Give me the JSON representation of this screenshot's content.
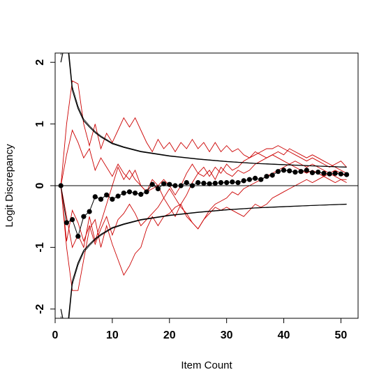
{
  "chart_data": {
    "type": "line",
    "title": "",
    "xlabel": "Item Count",
    "ylabel": "Logit Discrepancy",
    "xlim": [
      0,
      53
    ],
    "ylim": [
      -2.15,
      2.15
    ],
    "xticks": [
      0,
      10,
      20,
      30,
      40,
      50
    ],
    "yticks": [
      -2,
      -1,
      0,
      1,
      2
    ],
    "grid": false,
    "legend": "none",
    "colors": {
      "bands": "#000000",
      "paths": "#cc0000",
      "mean": "#000000",
      "reference": "#000000"
    },
    "reference_line": {
      "y": 0
    },
    "control_bands": [
      {
        "name": "upper",
        "x": [
          1,
          2,
          3,
          4,
          5,
          6,
          7,
          8,
          10,
          12,
          15,
          20,
          25,
          30,
          35,
          40,
          45,
          51
        ],
        "y": [
          2.0,
          2.45,
          1.55,
          1.25,
          1.05,
          0.95,
          0.86,
          0.79,
          0.68,
          0.62,
          0.55,
          0.48,
          0.43,
          0.39,
          0.36,
          0.34,
          0.32,
          0.3
        ]
      },
      {
        "name": "lower",
        "x": [
          1,
          2,
          3,
          4,
          5,
          6,
          7,
          8,
          10,
          12,
          15,
          20,
          25,
          30,
          35,
          40,
          45,
          51
        ],
        "y": [
          -2.0,
          -2.45,
          -1.55,
          -1.25,
          -1.05,
          -0.95,
          -0.86,
          -0.79,
          -0.68,
          -0.62,
          -0.55,
          -0.48,
          -0.43,
          -0.39,
          -0.36,
          -0.34,
          -0.32,
          -0.3
        ]
      }
    ],
    "series": [
      {
        "x": [
          1,
          2,
          3,
          4,
          5,
          6,
          7,
          8,
          9,
          10,
          11,
          12,
          13,
          14,
          15,
          16,
          17,
          18,
          19,
          20,
          21,
          22,
          23,
          24,
          25,
          26,
          27,
          28,
          29,
          30,
          31,
          32,
          33,
          34,
          35,
          36,
          37,
          38,
          39,
          40,
          41,
          42,
          43,
          44,
          45,
          46,
          47,
          48,
          49,
          50,
          51
        ],
        "y": [
          0,
          -0.6,
          -0.55,
          -0.82,
          -0.5,
          -0.42,
          -0.18,
          -0.22,
          -0.15,
          -0.22,
          -0.17,
          -0.12,
          -0.1,
          -0.12,
          -0.14,
          -0.1,
          0.02,
          -0.05,
          0.03,
          0.02,
          0.0,
          0.0,
          0.05,
          0.0,
          0.05,
          0.04,
          0.03,
          0.04,
          0.05,
          0.05,
          0.06,
          0.05,
          0.08,
          0.1,
          0.12,
          0.1,
          0.15,
          0.17,
          0.23,
          0.25,
          0.24,
          0.22,
          0.23,
          0.25,
          0.21,
          0.22,
          0.2,
          0.19,
          0.2,
          0.19,
          0.18
        ]
      }
    ],
    "paths": [
      {
        "x": [
          1,
          2,
          3,
          4,
          5,
          6,
          7,
          8,
          9,
          10,
          11,
          12,
          13,
          14,
          15,
          16,
          17,
          18,
          19,
          20,
          21,
          22,
          23,
          24,
          25,
          26,
          27,
          28,
          29,
          30,
          31,
          32,
          33,
          34,
          35,
          36,
          37,
          38,
          39,
          40,
          41,
          42,
          43,
          44,
          45,
          46,
          47,
          48,
          49,
          50,
          51
        ],
        "y": [
          0,
          1.0,
          1.7,
          1.65,
          1.0,
          0.65,
          1.0,
          0.6,
          0.85,
          0.7,
          0.9,
          1.1,
          0.95,
          1.1,
          0.9,
          0.7,
          0.55,
          0.75,
          0.6,
          0.7,
          0.55,
          0.7,
          0.6,
          0.75,
          0.6,
          0.7,
          0.55,
          0.7,
          0.55,
          0.65,
          0.55,
          0.6,
          0.5,
          0.45,
          0.5,
          0.55,
          0.6,
          0.6,
          0.65,
          0.6,
          0.55,
          0.5,
          0.45,
          0.4,
          0.45,
          0.4,
          0.35,
          0.3,
          0.35,
          0.4,
          0.3
        ]
      },
      {
        "x": [
          1,
          2,
          3,
          4,
          5,
          6,
          7,
          8,
          9,
          10,
          11,
          12,
          13,
          14,
          15,
          16,
          17,
          18,
          19,
          20,
          21,
          22,
          23,
          24,
          25,
          26,
          27,
          28,
          29,
          30,
          31,
          32,
          33,
          34,
          35,
          36,
          37,
          38,
          39,
          40,
          41,
          42,
          43,
          44,
          45,
          46,
          47,
          48,
          49,
          50,
          51
        ],
        "y": [
          0,
          -1.0,
          -1.7,
          -1.7,
          -1.2,
          -0.7,
          -0.55,
          -1.0,
          -0.65,
          -0.95,
          -1.2,
          -1.45,
          -1.3,
          -1.1,
          -1.0,
          -0.7,
          -0.5,
          -0.65,
          -0.5,
          -0.45,
          -0.35,
          -0.3,
          -0.5,
          -0.6,
          -0.7,
          -0.55,
          -0.4,
          -0.3,
          -0.25,
          -0.2,
          -0.1,
          -0.15,
          -0.05,
          0.0,
          0.05,
          0.1,
          0.15,
          0.2,
          0.25,
          0.3,
          0.35,
          0.4,
          0.35,
          0.3,
          0.35,
          0.3,
          0.25,
          0.2,
          0.25,
          0.2,
          0.15
        ]
      },
      {
        "x": [
          1,
          2,
          3,
          4,
          5,
          6,
          7,
          8,
          9,
          10,
          11,
          12,
          13,
          14,
          15,
          16,
          17,
          18,
          19,
          20,
          21,
          22,
          23,
          24,
          25,
          26,
          27,
          28,
          29,
          30,
          31,
          32,
          33,
          34,
          35,
          36,
          37,
          38,
          39,
          40,
          41,
          42,
          43,
          44,
          45,
          46,
          47,
          48,
          49,
          50,
          51
        ],
        "y": [
          0,
          -0.5,
          -1.0,
          -0.8,
          -1.0,
          -0.5,
          -0.9,
          -0.6,
          -0.3,
          0.0,
          0.3,
          0.1,
          0.25,
          0.1,
          0.0,
          -0.1,
          -0.05,
          0.0,
          0.1,
          0.0,
          -0.15,
          0.0,
          0.2,
          0.35,
          0.2,
          0.15,
          0.25,
          0.1,
          0.3,
          0.2,
          0.15,
          0.25,
          0.2,
          0.25,
          0.35,
          0.4,
          0.45,
          0.5,
          0.55,
          0.5,
          0.6,
          0.55,
          0.5,
          0.45,
          0.5,
          0.45,
          0.4,
          0.35,
          0.3,
          0.25,
          0.2
        ]
      },
      {
        "x": [
          1,
          2,
          3,
          4,
          5,
          6,
          7,
          8,
          9,
          10,
          11,
          12,
          13,
          14,
          15,
          16,
          17,
          18,
          19,
          20,
          21,
          22,
          23,
          24,
          25,
          26,
          27,
          28,
          29,
          30,
          31,
          32,
          33,
          34,
          35,
          36,
          37,
          38,
          39,
          40,
          41,
          42,
          43,
          44,
          45,
          46,
          47,
          48,
          49,
          50,
          51
        ],
        "y": [
          0,
          -0.9,
          -0.4,
          -0.6,
          -0.9,
          -0.65,
          -0.95,
          -0.7,
          -0.5,
          -0.8,
          -0.55,
          -0.45,
          -0.3,
          -0.45,
          -0.65,
          -0.55,
          -0.45,
          -0.35,
          -0.2,
          -0.05,
          -0.2,
          -0.35,
          -0.45,
          -0.6,
          -0.7,
          -0.55,
          -0.45,
          -0.35,
          -0.4,
          -0.35,
          -0.4,
          -0.45,
          -0.5,
          -0.4,
          -0.3,
          -0.35,
          -0.3,
          -0.2,
          -0.15,
          -0.1,
          -0.05,
          0.0,
          0.05,
          0.1,
          0.05,
          0.1,
          0.15,
          0.1,
          0.05,
          0.1,
          0.05
        ]
      },
      {
        "x": [
          1,
          2,
          3,
          4,
          5,
          6,
          7,
          8,
          9,
          10,
          11,
          12,
          13,
          14,
          15,
          16,
          17,
          18,
          19,
          20,
          21,
          22,
          23,
          24,
          25,
          26,
          27,
          28,
          29,
          30,
          31,
          32,
          33,
          34,
          35,
          36,
          37,
          38,
          39,
          40,
          41,
          42,
          43,
          44,
          45,
          46,
          47,
          48,
          49,
          50,
          51
        ],
        "y": [
          0,
          0.5,
          0.9,
          0.7,
          0.45,
          0.6,
          0.25,
          0.45,
          0.3,
          0.15,
          0.35,
          0.2,
          0.1,
          0.25,
          0.0,
          -0.1,
          0.1,
          0.0,
          -0.2,
          -0.35,
          -0.5,
          -0.3,
          -0.15,
          0.05,
          0.2,
          0.3,
          0.15,
          0.3,
          0.2,
          0.35,
          0.25,
          0.3,
          0.4,
          0.45,
          0.55,
          0.5,
          0.45,
          0.5,
          0.45,
          0.4,
          0.35,
          0.3,
          0.25,
          0.2,
          0.25,
          0.2,
          0.15,
          0.2,
          0.15,
          0.1,
          0.1
        ]
      }
    ]
  }
}
